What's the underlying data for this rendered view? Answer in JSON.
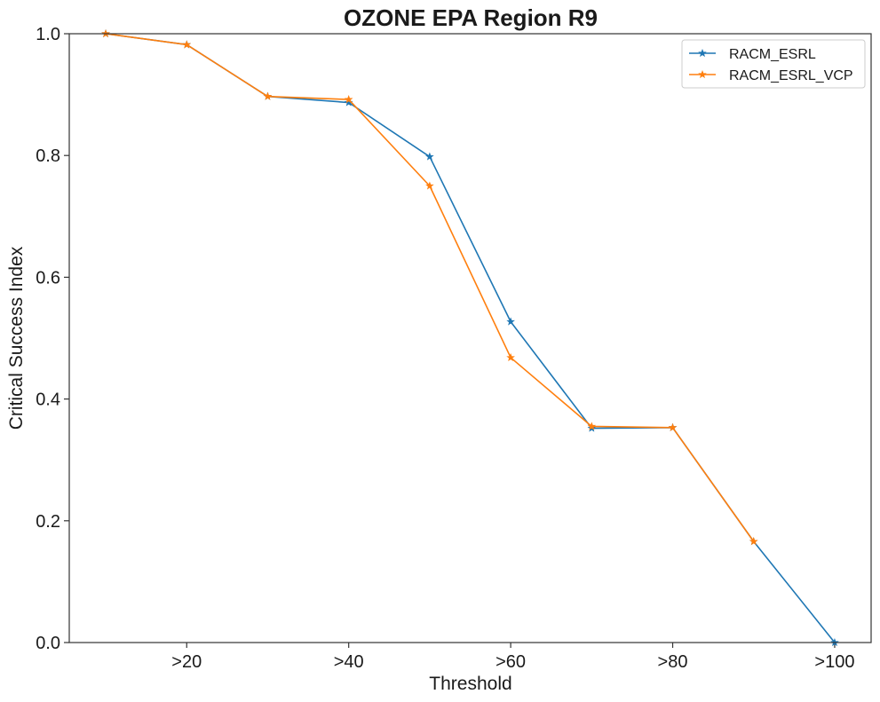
{
  "chart_data": {
    "type": "line",
    "title": "OZONE EPA Region R9",
    "xlabel": "Threshold",
    "ylabel": "Critical Success Index",
    "x_tick_labels": [
      ">20",
      ">40",
      ">60",
      ">80",
      ">100"
    ],
    "x_tick_values": [
      20,
      40,
      60,
      80,
      100
    ],
    "xlim": [
      5.5,
      104.5
    ],
    "ylim": [
      0,
      1
    ],
    "y_ticks": [
      "0.0",
      "0.2",
      "0.4",
      "0.6",
      "0.8",
      "1.0"
    ],
    "grid": false,
    "legend_position": "top-right",
    "x": [
      10,
      20,
      30,
      40,
      50,
      60,
      70,
      80,
      90,
      100
    ],
    "series": [
      {
        "name": "RACM_ESRL",
        "color": "#1f77b4",
        "marker": "star",
        "values": [
          1.0,
          0.982,
          0.897,
          0.887,
          0.798,
          0.527,
          0.352,
          0.353,
          0.166,
          0.0
        ]
      },
      {
        "name": "RACM_ESRL_VCP",
        "color": "#ff7f0e",
        "marker": "star",
        "values": [
          1.0,
          0.982,
          0.897,
          0.892,
          0.75,
          0.468,
          0.355,
          0.353,
          0.166,
          null
        ]
      }
    ]
  }
}
